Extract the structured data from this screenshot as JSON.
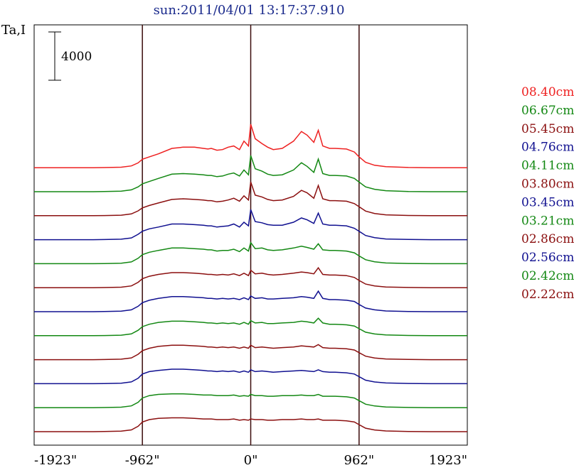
{
  "chart_data": {
    "type": "line",
    "title": "sun:2011/04/01 13:17:37.910",
    "ylabel": "Ta,I",
    "scale_bar_label": "4000",
    "xlim": [
      -1923,
      1923
    ],
    "x_ticks": [
      {
        "value": -1923,
        "label": "-1923\""
      },
      {
        "value": -962,
        "label": "-962\""
      },
      {
        "value": 0,
        "label": "0\""
      },
      {
        "value": 962,
        "label": "962\""
      },
      {
        "value": 1923,
        "label": "1923\""
      }
    ],
    "vertical_lines": [
      -962,
      0,
      962
    ],
    "colors": {
      "red": "#ee2020",
      "green": "#138813",
      "maroon": "#8b0f0f",
      "blue": "#101090"
    },
    "series": [
      {
        "name": "08.40cm",
        "color": "#ee2020",
        "offset": 0,
        "x": [
          -1923,
          -1600,
          -1400,
          -1300,
          -1150,
          -1060,
          -1000,
          -962,
          -900,
          -820,
          -700,
          -600,
          -500,
          -420,
          -380,
          -350,
          -300,
          -250,
          -200,
          -150,
          -100,
          -60,
          -20,
          0,
          40,
          100,
          150,
          200,
          280,
          380,
          450,
          500,
          560,
          600,
          640,
          700,
          750,
          850,
          920,
          962,
          1020,
          1100,
          1200,
          1400,
          1600,
          1923
        ],
        "y": [
          0,
          0,
          0,
          10,
          40,
          150,
          400,
          700,
          900,
          1150,
          1600,
          1700,
          1700,
          1600,
          1550,
          1600,
          1450,
          1500,
          1700,
          1800,
          1500,
          2200,
          1800,
          3600,
          2400,
          2000,
          1700,
          1500,
          1600,
          2200,
          3000,
          2700,
          2100,
          3100,
          1800,
          1600,
          1600,
          1550,
          1300,
          900,
          450,
          200,
          80,
          20,
          0,
          0
        ]
      },
      {
        "name": "06.67cm",
        "color": "#138813",
        "offset": 1,
        "x": [
          -1923,
          -1600,
          -1400,
          -1300,
          -1150,
          -1060,
          -1000,
          -962,
          -900,
          -820,
          -700,
          -600,
          -500,
          -420,
          -380,
          -350,
          -300,
          -250,
          -200,
          -150,
          -100,
          -60,
          -20,
          0,
          40,
          100,
          150,
          200,
          280,
          380,
          450,
          500,
          560,
          600,
          640,
          700,
          750,
          850,
          920,
          962,
          1020,
          1100,
          1200,
          1400,
          1600,
          1923
        ],
        "y": [
          0,
          0,
          0,
          10,
          40,
          150,
          400,
          650,
          850,
          1100,
          1450,
          1500,
          1450,
          1400,
          1350,
          1350,
          1250,
          1300,
          1450,
          1550,
          1300,
          1800,
          1400,
          3000,
          1900,
          1700,
          1450,
          1350,
          1400,
          1800,
          2400,
          2100,
          1600,
          2700,
          1500,
          1350,
          1350,
          1300,
          1100,
          800,
          400,
          200,
          80,
          20,
          0,
          0
        ]
      },
      {
        "name": "05.45cm",
        "color": "#8b0f0f",
        "offset": 2,
        "x": [
          -1923,
          -1600,
          -1400,
          -1300,
          -1150,
          -1060,
          -1000,
          -962,
          -900,
          -820,
          -700,
          -600,
          -500,
          -420,
          -380,
          -350,
          -300,
          -250,
          -200,
          -150,
          -100,
          -60,
          -20,
          0,
          40,
          100,
          150,
          200,
          280,
          380,
          450,
          500,
          560,
          600,
          640,
          700,
          750,
          850,
          920,
          962,
          1020,
          1100,
          1200,
          1400,
          1600,
          1923
        ],
        "y": [
          0,
          0,
          0,
          10,
          40,
          150,
          400,
          650,
          850,
          1050,
          1350,
          1400,
          1350,
          1300,
          1250,
          1250,
          1150,
          1200,
          1300,
          1450,
          1200,
          1650,
          1300,
          2800,
          1700,
          1550,
          1350,
          1250,
          1300,
          1600,
          2100,
          1900,
          1450,
          2500,
          1400,
          1250,
          1250,
          1200,
          1000,
          750,
          380,
          180,
          70,
          20,
          0,
          0
        ]
      },
      {
        "name": "04.76cm",
        "color": "#101090",
        "offset": 3,
        "x": [
          -1923,
          -1600,
          -1400,
          -1300,
          -1150,
          -1060,
          -1000,
          -962,
          -900,
          -820,
          -700,
          -600,
          -500,
          -420,
          -380,
          -350,
          -300,
          -250,
          -200,
          -150,
          -100,
          -60,
          -20,
          0,
          40,
          100,
          150,
          200,
          280,
          380,
          450,
          500,
          560,
          600,
          640,
          700,
          750,
          850,
          920,
          962,
          1020,
          1100,
          1200,
          1400,
          1600,
          1923
        ],
        "y": [
          0,
          0,
          0,
          10,
          40,
          150,
          450,
          700,
          900,
          1050,
          1300,
          1300,
          1250,
          1200,
          1150,
          1150,
          1050,
          1100,
          1150,
          1300,
          1050,
          1450,
          1150,
          2500,
          1500,
          1400,
          1250,
          1200,
          1200,
          1450,
          1800,
          1650,
          1350,
          2200,
          1300,
          1200,
          1200,
          1150,
          950,
          700,
          350,
          170,
          60,
          20,
          0,
          0
        ]
      },
      {
        "name": "04.11cm",
        "color": "#138813",
        "offset": 4,
        "x": [
          -1923,
          -1600,
          -1400,
          -1300,
          -1150,
          -1060,
          -1000,
          -962,
          -900,
          -820,
          -700,
          -600,
          -500,
          -420,
          -380,
          -350,
          -300,
          -250,
          -200,
          -150,
          -100,
          -60,
          -20,
          0,
          40,
          100,
          150,
          200,
          280,
          380,
          450,
          500,
          560,
          600,
          640,
          700,
          750,
          850,
          920,
          962,
          1020,
          1100,
          1200,
          1400,
          1600,
          1923
        ],
        "y": [
          0,
          0,
          0,
          10,
          40,
          150,
          450,
          750,
          950,
          1100,
          1300,
          1300,
          1250,
          1200,
          1150,
          1150,
          1050,
          1100,
          1100,
          1200,
          1000,
          1300,
          1050,
          1750,
          1250,
          1300,
          1150,
          1100,
          1150,
          1300,
          1450,
          1350,
          1200,
          1650,
          1150,
          1100,
          1100,
          1050,
          900,
          650,
          330,
          160,
          60,
          20,
          0,
          0
        ]
      },
      {
        "name": "03.80cm",
        "color": "#8b0f0f",
        "offset": 5,
        "x": [
          -1923,
          -1600,
          -1400,
          -1300,
          -1150,
          -1060,
          -1000,
          -962,
          -900,
          -820,
          -700,
          -600,
          -500,
          -420,
          -380,
          -350,
          -300,
          -250,
          -200,
          -150,
          -100,
          -60,
          -20,
          0,
          40,
          100,
          150,
          200,
          280,
          380,
          450,
          500,
          560,
          600,
          640,
          700,
          750,
          850,
          920,
          962,
          1020,
          1100,
          1200,
          1400,
          1600,
          1923
        ],
        "y": [
          0,
          0,
          0,
          10,
          40,
          150,
          450,
          750,
          950,
          1100,
          1250,
          1250,
          1200,
          1150,
          1100,
          1100,
          1050,
          1100,
          1050,
          1150,
          1000,
          1200,
          1000,
          1450,
          1150,
          1200,
          1100,
          1050,
          1100,
          1200,
          1300,
          1250,
          1150,
          1650,
          1100,
          1050,
          1050,
          1000,
          850,
          600,
          300,
          150,
          60,
          20,
          0,
          0
        ]
      },
      {
        "name": "03.45cm",
        "color": "#101090",
        "offset": 6,
        "x": [
          -1923,
          -1600,
          -1400,
          -1300,
          -1150,
          -1060,
          -1000,
          -962,
          -900,
          -820,
          -700,
          -600,
          -500,
          -420,
          -380,
          -350,
          -300,
          -250,
          -200,
          -150,
          -100,
          -60,
          -20,
          0,
          40,
          100,
          150,
          200,
          280,
          380,
          450,
          500,
          560,
          600,
          640,
          700,
          750,
          850,
          920,
          962,
          1020,
          1100,
          1200,
          1400,
          1600,
          1923
        ],
        "y": [
          0,
          0,
          0,
          10,
          40,
          150,
          450,
          750,
          950,
          1100,
          1250,
          1250,
          1200,
          1150,
          1100,
          1100,
          1050,
          1100,
          1050,
          1100,
          1000,
          1150,
          1000,
          1300,
          1100,
          1150,
          1050,
          1050,
          1100,
          1150,
          1250,
          1200,
          1100,
          1700,
          1100,
          1000,
          1000,
          950,
          850,
          600,
          300,
          150,
          60,
          20,
          0,
          0
        ]
      },
      {
        "name": "03.21cm",
        "color": "#138813",
        "offset": 7,
        "x": [
          -1923,
          -1600,
          -1400,
          -1300,
          -1150,
          -1060,
          -1000,
          -962,
          -900,
          -820,
          -700,
          -600,
          -500,
          -420,
          -380,
          -350,
          -300,
          -250,
          -200,
          -150,
          -100,
          -60,
          -20,
          0,
          40,
          100,
          150,
          200,
          280,
          380,
          450,
          500,
          560,
          600,
          640,
          700,
          750,
          850,
          920,
          962,
          1020,
          1100,
          1200,
          1400,
          1600,
          1923
        ],
        "y": [
          0,
          0,
          0,
          10,
          40,
          150,
          450,
          750,
          950,
          1100,
          1200,
          1200,
          1150,
          1100,
          1050,
          1050,
          1000,
          1050,
          1000,
          1050,
          950,
          1100,
          950,
          1250,
          1050,
          1100,
          1000,
          1000,
          1050,
          1100,
          1200,
          1150,
          1050,
          1450,
          1050,
          950,
          950,
          900,
          800,
          580,
          290,
          140,
          60,
          20,
          0,
          0
        ]
      },
      {
        "name": "02.86cm",
        "color": "#8b0f0f",
        "offset": 8,
        "x": [
          -1923,
          -1600,
          -1400,
          -1300,
          -1150,
          -1060,
          -1000,
          -962,
          -900,
          -820,
          -700,
          -600,
          -500,
          -420,
          -380,
          -350,
          -300,
          -250,
          -200,
          -150,
          -100,
          -60,
          -20,
          0,
          40,
          100,
          150,
          200,
          280,
          380,
          450,
          500,
          560,
          600,
          640,
          700,
          750,
          850,
          920,
          962,
          1020,
          1100,
          1200,
          1400,
          1600,
          1923
        ],
        "y": [
          0,
          0,
          0,
          10,
          40,
          150,
          450,
          750,
          950,
          1100,
          1200,
          1200,
          1150,
          1100,
          1050,
          1050,
          1000,
          1050,
          1000,
          1050,
          950,
          1050,
          950,
          1200,
          1000,
          1050,
          1000,
          950,
          1000,
          1050,
          1150,
          1100,
          1050,
          1250,
          1000,
          950,
          950,
          900,
          800,
          580,
          290,
          140,
          60,
          20,
          0,
          0
        ]
      },
      {
        "name": "02.56cm",
        "color": "#101090",
        "offset": 9,
        "x": [
          -1923,
          -1600,
          -1400,
          -1300,
          -1150,
          -1060,
          -1000,
          -962,
          -900,
          -820,
          -700,
          -600,
          -500,
          -420,
          -380,
          -350,
          -300,
          -250,
          -200,
          -150,
          -100,
          -60,
          -20,
          0,
          40,
          100,
          150,
          200,
          280,
          380,
          450,
          500,
          560,
          600,
          640,
          700,
          750,
          850,
          920,
          962,
          1020,
          1100,
          1200,
          1400,
          1600,
          1923
        ],
        "y": [
          0,
          0,
          0,
          10,
          40,
          150,
          450,
          800,
          1000,
          1100,
          1200,
          1200,
          1150,
          1100,
          1050,
          1050,
          1000,
          1050,
          1000,
          1050,
          950,
          1050,
          950,
          1150,
          1000,
          1050,
          1000,
          950,
          1000,
          1050,
          1100,
          1050,
          1000,
          1150,
          1000,
          950,
          950,
          900,
          800,
          580,
          290,
          140,
          60,
          20,
          0,
          0
        ]
      },
      {
        "name": "02.42cm",
        "color": "#138813",
        "offset": 10,
        "x": [
          -1923,
          -1600,
          -1400,
          -1300,
          -1150,
          -1060,
          -1000,
          -962,
          -900,
          -820,
          -700,
          -600,
          -500,
          -420,
          -380,
          -350,
          -300,
          -250,
          -200,
          -150,
          -100,
          -60,
          -20,
          0,
          40,
          100,
          150,
          200,
          280,
          380,
          450,
          500,
          560,
          600,
          640,
          700,
          750,
          850,
          920,
          962,
          1020,
          1100,
          1200,
          1400,
          1600,
          1923
        ],
        "y": [
          0,
          0,
          0,
          10,
          40,
          150,
          450,
          800,
          1000,
          1100,
          1150,
          1150,
          1100,
          1050,
          1050,
          1050,
          1000,
          1000,
          1000,
          1050,
          950,
          1000,
          950,
          1100,
          1000,
          1000,
          950,
          950,
          1000,
          1000,
          1050,
          1000,
          1000,
          1100,
          950,
          950,
          950,
          900,
          800,
          580,
          290,
          140,
          60,
          20,
          0,
          0
        ]
      },
      {
        "name": "02.22cm",
        "color": "#8b0f0f",
        "offset": 11,
        "x": [
          -1923,
          -1600,
          -1400,
          -1300,
          -1150,
          -1060,
          -1000,
          -962,
          -900,
          -820,
          -700,
          -600,
          -500,
          -420,
          -380,
          -350,
          -300,
          -250,
          -200,
          -150,
          -100,
          -60,
          -20,
          0,
          40,
          100,
          150,
          200,
          280,
          380,
          450,
          500,
          560,
          600,
          640,
          700,
          750,
          850,
          920,
          962,
          1020,
          1100,
          1200,
          1400,
          1600,
          1923
        ],
        "y": [
          0,
          0,
          0,
          10,
          40,
          150,
          450,
          800,
          1000,
          1100,
          1150,
          1150,
          1100,
          1050,
          1050,
          1050,
          1000,
          1000,
          1000,
          1050,
          950,
          1000,
          950,
          1050,
          1000,
          1000,
          950,
          950,
          1000,
          1000,
          1050,
          1000,
          1000,
          1050,
          950,
          950,
          950,
          900,
          800,
          580,
          290,
          140,
          60,
          20,
          0,
          0
        ]
      }
    ]
  }
}
